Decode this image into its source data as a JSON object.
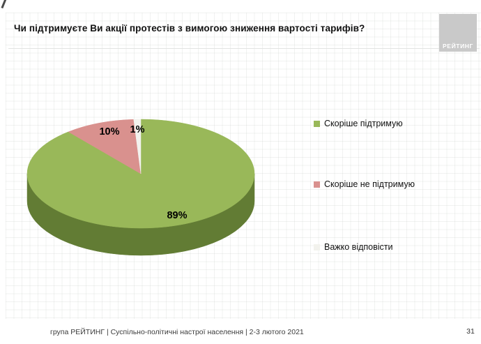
{
  "header": {
    "title": "Чи підтримуєте Ви акції протестів з вимогою зниження вартості тарифів?",
    "logo_text": "РЕЙТИНГ"
  },
  "chart_data": {
    "type": "pie",
    "style": "3d",
    "title": "Чи підтримуєте Ви акції протестів з вимогою зниження вартості тарифів?",
    "direction": "clockwise",
    "start_angle_deg": 0,
    "legend_position": "right",
    "side_color": "#627C34",
    "slices": [
      {
        "label": "Скоріше підтримую",
        "value": 89,
        "display": "89%",
        "color": "#99B859"
      },
      {
        "label": "Скоріше не підтримую",
        "value": 10,
        "display": "10%",
        "color": "#D9918E"
      },
      {
        "label": "Важко відповісти",
        "value": 1,
        "display": "1%",
        "color": "#F2F2ED"
      }
    ]
  },
  "footer": {
    "source_line": "група РЕЙТИНГ | Суспільно-політичні настрої населення | 2-3 лютого 2021",
    "page_number": "31"
  }
}
